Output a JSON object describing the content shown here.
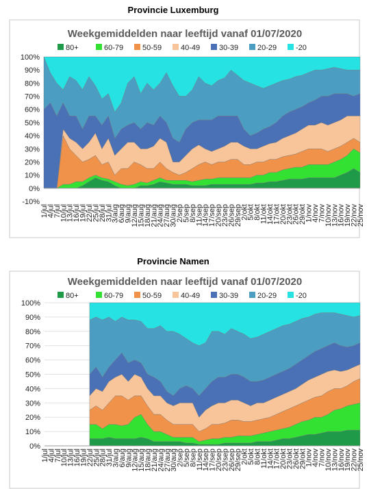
{
  "chart_data": [
    {
      "type": "area",
      "heading": "Provincie Luxemburg",
      "title": "Weekgemiddelden  naar leeftijd  vanaf 01/07/2020",
      "categories": [
        "1/jul",
        "4/jul",
        "7/jul",
        "10/jul",
        "13/jul",
        "16/jul",
        "19/jul",
        "22/jul",
        "25/jul",
        "28/jul",
        "31/jul",
        "3/aug",
        "6/aug",
        "9/aug",
        "12/aug",
        "15/aug",
        "18/aug",
        "21/aug",
        "24/aug",
        "27/aug",
        "30/aug",
        "2/sep",
        "5/sep",
        "8/sep",
        "11/sep",
        "14/sep",
        "17/sep",
        "20/sep",
        "23/sep",
        "26/sep",
        "29/sep",
        "2/okt",
        "5/okt",
        "8/okt",
        "11/okt",
        "14/okt",
        "17/okt",
        "20/okt",
        "23/okt",
        "26/okt",
        "29/okt",
        "1/nov",
        "4/nov",
        "7/nov",
        "10/nov",
        "13/nov",
        "16/nov",
        "19/nov",
        "22/nov",
        "25/nov"
      ],
      "ylim": [
        -10,
        100
      ],
      "yticks": [
        {
          "value": -10,
          "label": "-10%"
        },
        {
          "value": 0,
          "label": "0%"
        },
        {
          "value": 10,
          "label": "10%"
        },
        {
          "value": 20,
          "label": "20%"
        },
        {
          "value": 30,
          "label": "30%"
        },
        {
          "value": 40,
          "label": "40%"
        },
        {
          "value": 50,
          "label": "50%"
        },
        {
          "value": 60,
          "label": "60%"
        },
        {
          "value": 70,
          "label": "70%"
        },
        {
          "value": 80,
          "label": "80%"
        },
        {
          "value": 90,
          "label": "90%"
        },
        {
          "value": 100,
          "label": "100%"
        }
      ],
      "grid": false,
      "series": [
        {
          "name": "80+",
          "color": "#1f9a48",
          "values": [
            0,
            0,
            0,
            0,
            0,
            0,
            2,
            5,
            8,
            6,
            5,
            2,
            0,
            0,
            0,
            2,
            2,
            3,
            5,
            4,
            3,
            3,
            3,
            2,
            2,
            2,
            3,
            3,
            3,
            3,
            3,
            3,
            3,
            4,
            4,
            5,
            5,
            6,
            7,
            7,
            7,
            8,
            8,
            8,
            8,
            8,
            10,
            12,
            15,
            12
          ]
        },
        {
          "name": "60-79",
          "color": "#33e133",
          "values": [
            0,
            0,
            0,
            3,
            3,
            5,
            3,
            3,
            2,
            2,
            2,
            3,
            3,
            2,
            3,
            3,
            2,
            3,
            3,
            2,
            3,
            3,
            3,
            3,
            4,
            5,
            4,
            5,
            5,
            5,
            5,
            5,
            5,
            6,
            6,
            7,
            7,
            8,
            8,
            9,
            9,
            10,
            10,
            10,
            10,
            12,
            12,
            13,
            15,
            15
          ]
        },
        {
          "name": "50-59",
          "color": "#f0924a",
          "values": [
            0,
            0,
            0,
            37,
            27,
            20,
            15,
            14,
            15,
            10,
            13,
            5,
            12,
            13,
            17,
            13,
            11,
            9,
            12,
            9,
            6,
            4,
            6,
            10,
            12,
            13,
            11,
            12,
            12,
            14,
            14,
            10,
            10,
            10,
            10,
            10,
            10,
            10,
            10,
            10,
            12,
            12,
            12,
            12,
            10,
            10,
            10,
            10,
            8,
            8
          ]
        },
        {
          "name": "40-49",
          "color": "#f7c599",
          "values": [
            0,
            0,
            0,
            5,
            8,
            10,
            10,
            13,
            17,
            12,
            18,
            15,
            15,
            20,
            15,
            12,
            15,
            17,
            18,
            20,
            8,
            10,
            13,
            15,
            15,
            10,
            10,
            10,
            12,
            13,
            13,
            14,
            12,
            10,
            12,
            12,
            13,
            14,
            15,
            16,
            17,
            18,
            18,
            20,
            20,
            20,
            20,
            20,
            17,
            20
          ]
        },
        {
          "name": "30-39",
          "color": "#4a70b6",
          "values": [
            60,
            65,
            55,
            20,
            17,
            20,
            15,
            20,
            13,
            18,
            17,
            13,
            15,
            13,
            15,
            15,
            20,
            16,
            17,
            15,
            18,
            15,
            20,
            20,
            19,
            22,
            24,
            25,
            23,
            20,
            20,
            13,
            10,
            12,
            13,
            13,
            15,
            17,
            18,
            18,
            17,
            17,
            19,
            20,
            22,
            22,
            20,
            17,
            15,
            17
          ]
        },
        {
          "name": "20-29",
          "color": "#4b9dc2",
          "values": [
            40,
            23,
            25,
            10,
            30,
            27,
            30,
            30,
            23,
            20,
            17,
            20,
            20,
            32,
            35,
            27,
            30,
            27,
            25,
            38,
            40,
            35,
            25,
            25,
            33,
            28,
            26,
            27,
            29,
            35,
            31,
            37,
            40,
            36,
            31,
            31,
            30,
            27,
            25,
            25,
            24,
            23,
            23,
            20,
            21,
            20,
            19,
            18,
            20,
            18
          ]
        },
        {
          "name": "-20",
          "color": "#26e2e2",
          "values": [
            0,
            12,
            20,
            25,
            15,
            18,
            25,
            15,
            22,
            32,
            28,
            42,
            35,
            20,
            15,
            28,
            20,
            25,
            20,
            12,
            22,
            30,
            30,
            25,
            15,
            20,
            22,
            18,
            16,
            10,
            14,
            18,
            20,
            22,
            24,
            22,
            20,
            18,
            17,
            15,
            14,
            12,
            10,
            10,
            9,
            8,
            9,
            10,
            10,
            10
          ]
        }
      ]
    },
    {
      "type": "area",
      "heading": "Provincie Namen",
      "title": "Weekgemiddelden  naar leeftijd  vanaf 01/07/2020",
      "categories": [
        "1/jul",
        "4/jul",
        "7/jul",
        "10/jul",
        "13/jul",
        "16/jul",
        "19/jul",
        "22/jul",
        "25/jul",
        "28/jul",
        "31/jul",
        "3/aug",
        "6/aug",
        "9/aug",
        "12/aug",
        "15/aug",
        "18/aug",
        "21/aug",
        "24/aug",
        "27/aug",
        "30/aug",
        "2/sep",
        "5/sep",
        "8/sep",
        "11/sep",
        "14/sep",
        "17/sep",
        "20/sep",
        "23/sep",
        "26/sep",
        "29/sep",
        "2/okt",
        "5/okt",
        "8/okt",
        "11/okt",
        "14/okt",
        "17/okt",
        "20/okt",
        "23/okt",
        "26/okt",
        "29/okt",
        "1/nov",
        "4/nov",
        "7/nov",
        "10/nov",
        "13/nov",
        "16/nov",
        "19/nov",
        "22/nov",
        "25/nov"
      ],
      "ylim": [
        0,
        100
      ],
      "yticks": [
        {
          "value": 0,
          "label": "0%"
        },
        {
          "value": 10,
          "label": "10%"
        },
        {
          "value": 20,
          "label": "20%"
        },
        {
          "value": 30,
          "label": "30%"
        },
        {
          "value": 40,
          "label": "40%"
        },
        {
          "value": 50,
          "label": "50%"
        },
        {
          "value": 60,
          "label": "60%"
        },
        {
          "value": 70,
          "label": "70%"
        },
        {
          "value": 80,
          "label": "80%"
        },
        {
          "value": 90,
          "label": "90%"
        },
        {
          "value": 100,
          "label": "100%"
        }
      ],
      "grid": true,
      "series": [
        {
          "name": "80+",
          "color": "#1f9a48",
          "values": [
            null,
            null,
            null,
            null,
            null,
            null,
            null,
            5,
            5,
            5,
            6,
            5,
            5,
            5,
            5,
            6,
            5,
            3,
            3,
            3,
            3,
            3,
            2,
            2,
            1,
            1,
            1,
            1,
            2,
            2,
            2,
            2,
            2,
            3,
            3,
            3,
            4,
            5,
            5,
            6,
            7,
            8,
            8,
            9,
            10,
            10,
            10,
            11,
            11,
            11
          ]
        },
        {
          "name": "60-79",
          "color": "#33e133",
          "values": [
            null,
            null,
            null,
            null,
            null,
            null,
            null,
            10,
            10,
            7,
            9,
            10,
            9,
            10,
            15,
            16,
            10,
            7,
            7,
            5,
            3,
            3,
            4,
            4,
            2,
            3,
            4,
            4,
            4,
            4,
            5,
            5,
            5,
            5,
            6,
            7,
            7,
            7,
            8,
            9,
            10,
            10,
            12,
            11,
            12,
            15,
            16,
            17,
            18,
            19
          ]
        },
        {
          "name": "50-59",
          "color": "#f0924a",
          "values": [
            null,
            null,
            null,
            null,
            null,
            null,
            null,
            10,
            13,
            13,
            15,
            20,
            21,
            17,
            15,
            13,
            13,
            12,
            12,
            10,
            9,
            9,
            9,
            9,
            7,
            8,
            10,
            10,
            10,
            12,
            11,
            10,
            10,
            10,
            10,
            10,
            11,
            12,
            13,
            13,
            13,
            14,
            14,
            15,
            16,
            15,
            14,
            14,
            16,
            17
          ]
        },
        {
          "name": "40-49",
          "color": "#f7c599",
          "values": [
            null,
            null,
            null,
            null,
            null,
            null,
            null,
            10,
            12,
            13,
            15,
            13,
            15,
            13,
            15,
            13,
            12,
            13,
            13,
            12,
            13,
            15,
            15,
            15,
            10,
            13,
            13,
            15,
            14,
            14,
            14,
            13,
            11,
            12,
            11,
            12,
            12,
            12,
            12,
            12,
            13,
            14,
            14,
            15,
            14,
            13,
            12,
            11,
            10,
            10
          ]
        },
        {
          "name": "30-39",
          "color": "#4a70b6",
          "values": [
            null,
            null,
            null,
            null,
            null,
            null,
            null,
            15,
            15,
            10,
            10,
            12,
            15,
            13,
            10,
            10,
            10,
            13,
            10,
            8,
            7,
            10,
            12,
            10,
            15,
            15,
            17,
            18,
            18,
            18,
            18,
            18,
            17,
            15,
            16,
            16,
            16,
            16,
            16,
            17,
            17,
            17,
            18,
            18,
            18,
            19,
            18,
            16,
            15,
            15
          ]
        },
        {
          "name": "20-29",
          "color": "#4b9dc2",
          "values": [
            null,
            null,
            null,
            null,
            null,
            null,
            null,
            38,
            35,
            40,
            35,
            27,
            25,
            30,
            28,
            29,
            32,
            34,
            39,
            42,
            45,
            38,
            33,
            32,
            35,
            32,
            35,
            32,
            30,
            32,
            30,
            30,
            30,
            31,
            32,
            32,
            32,
            32,
            31,
            30,
            29,
            27,
            26,
            25,
            23,
            21,
            22,
            22,
            20,
            19
          ]
        },
        {
          "name": "-20",
          "color": "#26e2e2",
          "values": [
            null,
            null,
            null,
            null,
            null,
            null,
            null,
            12,
            10,
            12,
            10,
            13,
            10,
            12,
            12,
            13,
            18,
            18,
            16,
            20,
            20,
            22,
            25,
            28,
            30,
            28,
            20,
            20,
            22,
            18,
            20,
            22,
            25,
            24,
            22,
            20,
            18,
            16,
            15,
            13,
            11,
            10,
            8,
            7,
            7,
            7,
            8,
            9,
            10,
            9
          ]
        }
      ]
    }
  ]
}
